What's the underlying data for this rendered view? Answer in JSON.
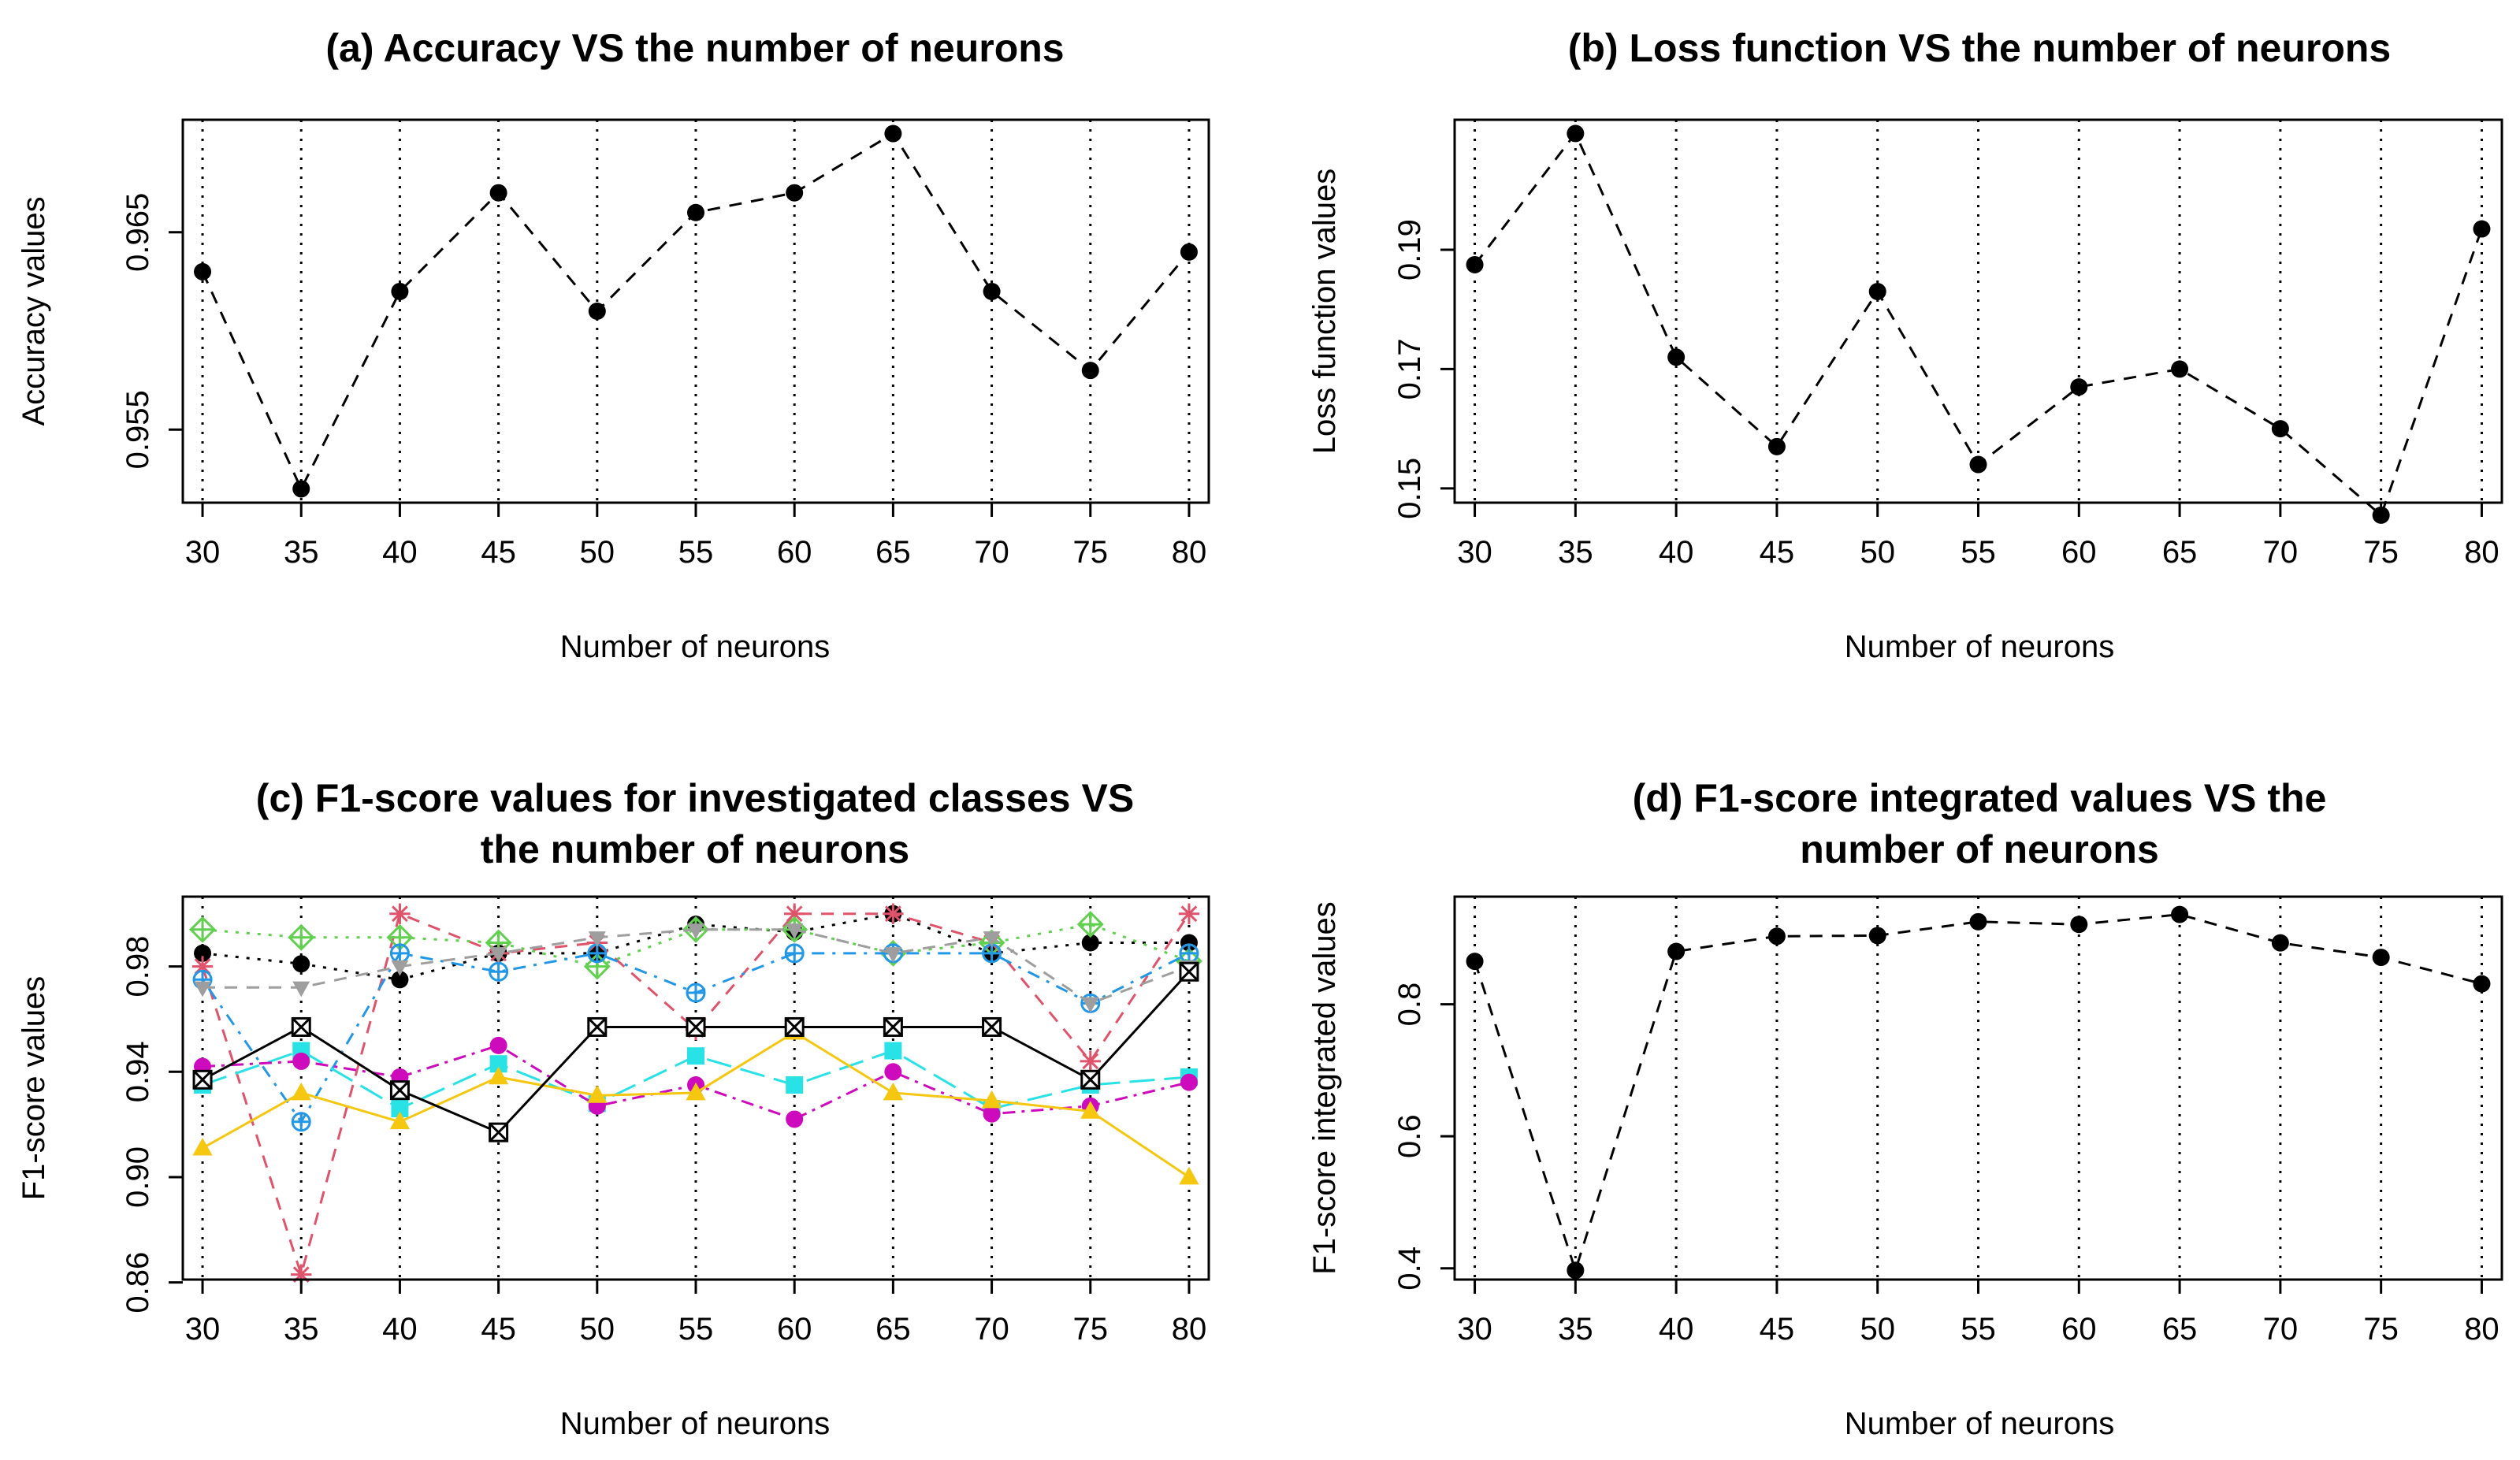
{
  "chart_data": [
    {
      "id": "a",
      "type": "line",
      "title": [
        "(a) Accuracy VS the number of neurons"
      ],
      "xlabel": "Number of neurons",
      "ylabel": "Accuracy values",
      "x": [
        30,
        35,
        40,
        45,
        50,
        55,
        60,
        65,
        70,
        75,
        80
      ],
      "xlim": [
        29,
        81
      ],
      "ylim": [
        0.9513,
        0.9707
      ],
      "yticks": [
        0.955,
        0.965
      ],
      "ytick_labels": [
        "0.955",
        "0.965"
      ],
      "vgrid": "dotted",
      "series": [
        {
          "color": "#000000",
          "dash": "dashed",
          "marker": "circle",
          "values": [
            0.963,
            0.952,
            0.962,
            0.967,
            0.961,
            0.966,
            0.967,
            0.97,
            0.962,
            0.958,
            0.964
          ]
        }
      ]
    },
    {
      "id": "b",
      "type": "line",
      "title": [
        "(b) Loss function VS the number of neurons"
      ],
      "xlabel": "Number of neurons",
      "ylabel": "Loss function values",
      "x": [
        30,
        35,
        40,
        45,
        50,
        55,
        60,
        65,
        70,
        75,
        80
      ],
      "xlim": [
        29,
        81
      ],
      "ylim": [
        0.1476,
        0.2118
      ],
      "yticks": [
        0.15,
        0.17,
        0.19
      ],
      "ytick_labels": [
        "0.15",
        "0.17",
        "0.19"
      ],
      "vgrid": "dotted",
      "series": [
        {
          "color": "#000000",
          "dash": "dashed",
          "marker": "circle",
          "values": [
            0.1875,
            0.2095,
            0.172,
            0.157,
            0.183,
            0.154,
            0.167,
            0.17,
            0.16,
            0.1455,
            0.1935
          ]
        }
      ]
    },
    {
      "id": "c",
      "type": "line",
      "title": [
        "(c) F1-score values for investigated classes VS",
        "the number of neurons"
      ],
      "xlabel": "Number of neurons",
      "ylabel": "F1-score values",
      "x": [
        30,
        35,
        40,
        45,
        50,
        55,
        60,
        65,
        70,
        75,
        80
      ],
      "xlim": [
        29,
        81
      ],
      "ylim": [
        0.8611,
        1.0065
      ],
      "yticks": [
        0.86,
        0.9,
        0.94,
        0.98
      ],
      "ytick_labels": [
        "0.86",
        "0.90",
        "0.94",
        "0.98"
      ],
      "vgrid": "dotted",
      "series": [
        {
          "color": "#000000",
          "dash": "dotted",
          "marker": "circle",
          "values": [
            0.985,
            0.981,
            0.975,
            0.985,
            0.985,
            0.996,
            0.993,
            1.0,
            0.985,
            0.989,
            0.989
          ]
        },
        {
          "color": "#df536b",
          "dash": "dashed",
          "marker": "asterisk",
          "values": [
            0.98,
            0.863,
            1.0,
            0.985,
            0.989,
            0.956,
            1.0,
            1.0,
            0.989,
            0.944,
            1.0
          ]
        },
        {
          "color": "#61d04f",
          "dash": "dotted",
          "marker": "diamond-plus",
          "values": [
            0.994,
            0.991,
            0.991,
            0.989,
            0.98,
            0.994,
            0.994,
            0.985,
            0.989,
            0.996,
            0.982
          ]
        },
        {
          "color": "#2297e6",
          "dash": "dotdash",
          "marker": "circle-plus",
          "values": [
            0.975,
            0.921,
            0.985,
            0.978,
            0.985,
            0.97,
            0.985,
            0.985,
            0.985,
            0.966,
            0.985
          ]
        },
        {
          "color": "#28e2e5",
          "dash": "longdash",
          "marker": "square",
          "values": [
            0.935,
            0.948,
            0.926,
            0.943,
            0.928,
            0.946,
            0.935,
            0.948,
            0.926,
            0.935,
            0.938
          ]
        },
        {
          "color": "#cd0bbc",
          "dash": "dashdot",
          "marker": "circle",
          "values": [
            0.942,
            0.944,
            0.938,
            0.95,
            0.927,
            0.935,
            0.922,
            0.94,
            0.924,
            0.927,
            0.936
          ]
        },
        {
          "color": "#f5c710",
          "dash": "solid",
          "marker": "triangle",
          "values": [
            0.911,
            0.932,
            0.921,
            0.938,
            0.931,
            0.932,
            0.955,
            0.932,
            0.929,
            0.925,
            0.9
          ]
        },
        {
          "color": "#9e9e9e",
          "dash": "dashed",
          "marker": "triangle-down",
          "values": [
            0.972,
            0.972,
            0.98,
            0.985,
            0.991,
            0.994,
            0.994,
            0.985,
            0.991,
            0.966,
            0.98
          ]
        },
        {
          "color": "#000000",
          "dash": "solid",
          "marker": "square-x",
          "values": [
            0.937,
            0.957,
            0.933,
            0.917,
            0.957,
            0.957,
            0.957,
            0.957,
            0.957,
            0.937,
            0.978
          ]
        }
      ]
    },
    {
      "id": "d",
      "type": "line",
      "title": [
        "(d) F1-score integrated values VS the",
        "number of neurons"
      ],
      "xlabel": "Number of neurons",
      "ylabel": "F1-score integrated values",
      "x": [
        30,
        35,
        40,
        45,
        50,
        55,
        60,
        65,
        70,
        75,
        80
      ],
      "xlim": [
        29,
        81
      ],
      "ylim": [
        0.383,
        0.963
      ],
      "yticks": [
        0.4,
        0.6,
        0.8
      ],
      "ytick_labels": [
        "0.4",
        "0.6",
        "0.8"
      ],
      "vgrid": "dotted",
      "series": [
        {
          "color": "#000000",
          "dash": "dashed",
          "marker": "circle",
          "values": [
            0.865,
            0.397,
            0.88,
            0.903,
            0.904,
            0.925,
            0.921,
            0.936,
            0.893,
            0.871,
            0.831
          ]
        }
      ]
    }
  ]
}
